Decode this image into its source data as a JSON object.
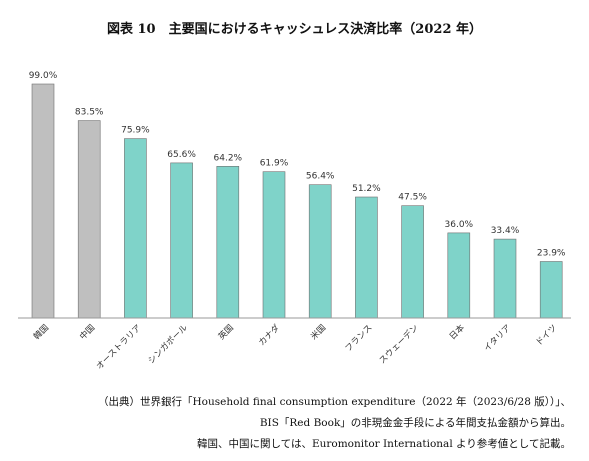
{
  "title": "図表 10　主要国におけるキャッシュレス決済比率（2022 年）",
  "chart_data": {
    "type": "bar",
    "categories": [
      "韓国",
      "中国",
      "オーストラリア",
      "シンガポール",
      "英国",
      "カナダ",
      "米国",
      "フランス",
      "スウェーデン",
      "日本",
      "イタリア",
      "ドイツ"
    ],
    "values": [
      99.0,
      83.5,
      75.9,
      65.6,
      64.2,
      61.9,
      56.4,
      51.2,
      47.5,
      36.0,
      33.4,
      23.9
    ],
    "data_labels": [
      "99.0%",
      "83.5%",
      "75.9%",
      "65.6%",
      "64.2%",
      "61.9%",
      "56.4%",
      "51.2%",
      "47.5%",
      "36.0%",
      "33.4%",
      "23.9%"
    ],
    "colors": [
      "#bfbfbf",
      "#bfbfbf",
      "#7fd3c9",
      "#7fd3c9",
      "#7fd3c9",
      "#7fd3c9",
      "#7fd3c9",
      "#7fd3c9",
      "#7fd3c9",
      "#7fd3c9",
      "#7fd3c9",
      "#7fd3c9"
    ],
    "bar_border": "#6f6f6f",
    "ylim": [
      0,
      100
    ],
    "grid": false,
    "legend": "none",
    "xlabel": "",
    "ylabel": ""
  },
  "source_lines": [
    "（出典）世界銀行「Household final consumption expenditure（2022 年（2023/6/28 版））」、",
    "BIS「Red Book」の非現金金手段による年間支払金額から算出。",
    "韓国、中国に関しては、Euromonitor International より参考値として記載。"
  ]
}
